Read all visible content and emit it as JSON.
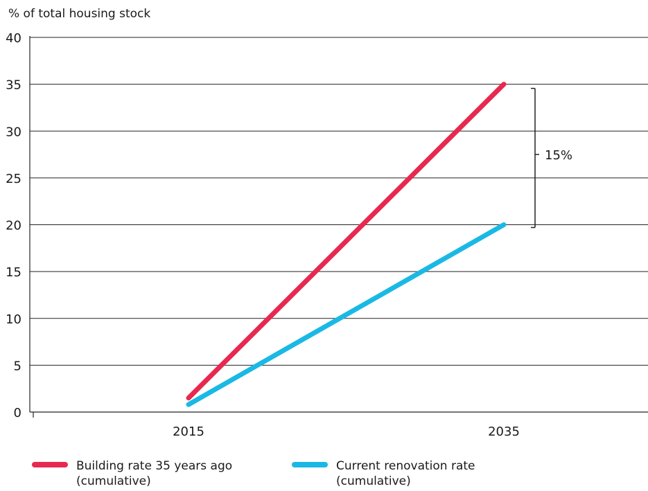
{
  "chart_data": {
    "type": "line",
    "ylabel": "% of total housing stock",
    "xlabel": "",
    "ylim": [
      0,
      40
    ],
    "yticks": [
      0,
      5,
      10,
      15,
      20,
      25,
      30,
      35,
      40
    ],
    "x": [
      "2015",
      "2035"
    ],
    "grid": true,
    "series": [
      {
        "name_lines": [
          "Building rate 35 years ago",
          "(cumulative)"
        ],
        "color": "#e8294f",
        "values": [
          1.5,
          35
        ]
      },
      {
        "name_lines": [
          "Current renovation rate",
          "(cumulative)"
        ],
        "color": "#1ab9e5",
        "values": [
          0.8,
          20
        ]
      }
    ],
    "annotations": [
      {
        "text": "15%",
        "type": "bracket",
        "from": 20,
        "to": 35
      }
    ],
    "legend_position": "bottom"
  }
}
